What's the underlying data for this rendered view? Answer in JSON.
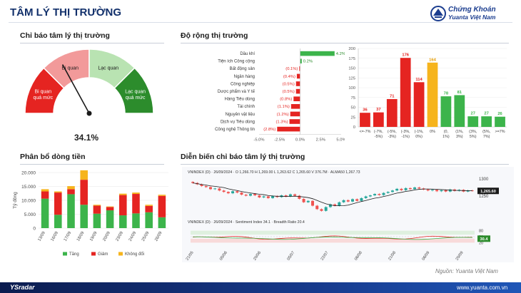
{
  "header": {
    "title": "TÂM LÝ THỊ TRƯỜNG",
    "brand_line1": "Chứng Khoán",
    "brand_line2": "Yuanta Việt Nam"
  },
  "sections": {
    "gauge_title": "Chỉ báo tâm lý thị trường",
    "breadth_title": "Độ rộng thị trường",
    "flow_title": "Phân bổ dòng tiền",
    "trend_title": "Diễn biến chỉ báo tâm lý thị trường"
  },
  "gauge": {
    "value": 34.1,
    "value_label": "34.1%",
    "zones": [
      {
        "label": "Bi quan quá mức",
        "color": "#e52421"
      },
      {
        "label": "Bi quan",
        "color": "#f29a9a"
      },
      {
        "label": "Lạc quan",
        "color": "#b9e3b2"
      },
      {
        "label": "Lạc quan quá mức",
        "color": "#2c8c2c"
      }
    ]
  },
  "chart_data": [
    {
      "type": "bar",
      "orientation": "horizontal",
      "categories": [
        "Dầu khí",
        "Tiện ích Công cộng",
        "Bất động sản",
        "Ngân hàng",
        "Công nghiệp",
        "Dược phẩm và Y tế",
        "Hàng Tiêu dùng",
        "Tài chính",
        "Nguyên vật liệu",
        "Dịch vụ Tiêu dùng",
        "Công nghệ Thông tin"
      ],
      "values": [
        4.2,
        0.2,
        -0.1,
        -0.4,
        -0.5,
        -0.5,
        -0.8,
        -1.1,
        -1.2,
        -1.3,
        -2.8
      ],
      "data_labels": [
        "4.2%",
        "0.2%",
        "(0.1%)",
        "(0.4%)",
        "(0.5%)",
        "(0.5%)",
        "(0.8%)",
        "(1.1%)",
        "(1.2%)",
        "(1.3%)",
        "(2.8%)"
      ],
      "xlim": [
        -5.0,
        5.0
      ],
      "xticks": [
        "-5.0%",
        "-2.5%",
        "0.0%",
        "2.5%",
        "5.0%"
      ],
      "colors": {
        "positive": "#3cb44b",
        "negative": "#e52421"
      }
    },
    {
      "type": "bar",
      "categories": [
        [
          "<=-7%"
        ],
        [
          "(-7%,",
          "-5%)"
        ],
        [
          "(-5%,",
          "-3%)"
        ],
        [
          "(-3%,",
          "-1%)"
        ],
        [
          "(-1%,",
          "0%)"
        ],
        [
          "0%"
        ],
        [
          "(0,",
          "1%)"
        ],
        [
          "(1%,",
          "3%)"
        ],
        [
          "(3%,",
          "5%)"
        ],
        [
          "(5%,",
          "7%)"
        ],
        [
          ">=7%"
        ]
      ],
      "values": [
        36,
        37,
        71,
        176,
        114,
        164,
        78,
        81,
        27,
        27,
        26
      ],
      "colors": [
        "#e52421",
        "#e52421",
        "#e52421",
        "#e52421",
        "#e52421",
        "#f6b41c",
        "#3cb44b",
        "#3cb44b",
        "#3cb44b",
        "#3cb44b",
        "#3cb44b"
      ],
      "ylim": [
        0,
        200
      ],
      "yticks": [
        "0",
        "25",
        "50",
        "75",
        "100",
        "125",
        "150",
        "175",
        "200"
      ]
    },
    {
      "type": "bar",
      "stacked": true,
      "categories": [
        "13/09",
        "16/09",
        "17/09",
        "18/09",
        "19/09",
        "20/09",
        "23/09",
        "24/09",
        "25/09",
        "26/09"
      ],
      "series": [
        {
          "name": "Tăng",
          "color": "#3cb44b",
          "values": [
            10600,
            4800,
            12200,
            8400,
            5200,
            6400,
            4600,
            5300,
            5700,
            3900
          ]
        },
        {
          "name": "Giảm",
          "color": "#e52421",
          "values": [
            2600,
            8000,
            1800,
            9000,
            2900,
            1200,
            7300,
            7000,
            2300,
            7700
          ]
        },
        {
          "name": "Không đổi",
          "color": "#f6b41c",
          "values": [
            800,
            400,
            1100,
            3400,
            300,
            200,
            500,
            500,
            400,
            400
          ]
        }
      ],
      "ylabel": "Tỷ đồng",
      "ylim": [
        0,
        20000
      ],
      "yticks": [
        "0",
        "5.000",
        "10.000",
        "15.000",
        "20.000"
      ]
    },
    {
      "type": "line",
      "panels": [
        {
          "header": "VNINDEX (D) · 26/09/2024 · O 1,266.70 H 1,269.00 L 1,263.62 C 1,265.60 V 376.7M · ALMA50 1,267.73",
          "ylim": [
            1190,
            1310
          ],
          "yticks": [
            "1300",
            "1250"
          ],
          "last_label": "1,265.60",
          "close": [
            1288,
            1284,
            1279,
            1276,
            1270,
            1272,
            1266,
            1262,
            1258,
            1264,
            1260,
            1254,
            1251,
            1256,
            1252,
            1246,
            1249,
            1244,
            1250,
            1247,
            1252,
            1249,
            1255,
            1251,
            1242,
            1232,
            1236,
            1222,
            1212,
            1207,
            1218,
            1226,
            1222,
            1232,
            1238,
            1234,
            1241,
            1236,
            1244,
            1249,
            1252,
            1256,
            1253,
            1259,
            1262,
            1266,
            1271,
            1267,
            1273,
            1270,
            1275,
            1272,
            1269,
            1266,
            1268,
            1264,
            1267,
            1263,
            1269,
            1265,
            1268,
            1263,
            1266,
            1265
          ]
        },
        {
          "header": "VNINDEX (D) · 26/09/2024 · Sentiment Index 34.1 · Breadth Ratio 20.4",
          "yticks": [
            "80",
            "50",
            "20"
          ],
          "last_label": "30.4"
        }
      ],
      "x_ticks": [
        "21/05",
        "05/06",
        "20/06",
        "05/07",
        "22/07",
        "06/08",
        "21/08",
        "06/09",
        "20/09"
      ]
    }
  ],
  "footer": {
    "source": "Nguồn: Yuanta Việt Nam",
    "logo": "YSradar",
    "url": "www.yuanta.com.vn"
  }
}
